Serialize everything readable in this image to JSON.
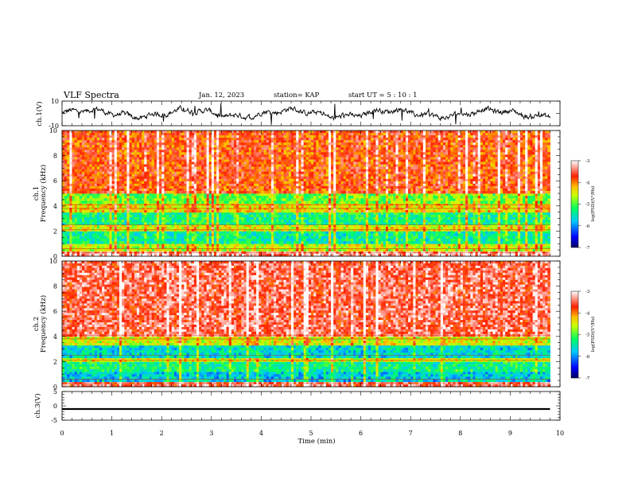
{
  "header": {
    "title": "VLF Spectra",
    "date": "Jan. 12, 2023",
    "station": "station= KAP",
    "start": "start UT =  5 : 10 : 1"
  },
  "chart_data": [
    {
      "type": "line",
      "panel": "ch1-waveform",
      "ylabel": "ch.1(V)",
      "ylim": [
        -10,
        10
      ],
      "yticks": [
        "10",
        "-10"
      ],
      "xlim": [
        0,
        10
      ],
      "description_values": {
        "x_range_min": [
          0,
          9.8
        ],
        "y_typical": [
          -3,
          3
        ]
      }
    },
    {
      "type": "heatmap",
      "panel": "ch1-spectrogram",
      "ylabel_line1": "ch.1",
      "ylabel_line2": "Frequency (kHz)",
      "ylim": [
        0,
        10
      ],
      "yticks": [
        "0",
        "2",
        "4",
        "6",
        "8",
        "10"
      ],
      "xlim": [
        0,
        9.8
      ],
      "colorbar": {
        "label": "log(PSD)(V²/Hz)",
        "range": [
          -7,
          -3
        ],
        "ticks": [
          "-3",
          "-4",
          "-5",
          "-6",
          "-7"
        ]
      },
      "bands": [
        {
          "f": [
            0,
            0.4
          ],
          "level": -3.4
        },
        {
          "f": [
            0.4,
            1.0
          ],
          "level": -4.6
        },
        {
          "f": [
            1.0,
            2.0
          ],
          "level": -5.4
        },
        {
          "f": [
            2.0,
            2.5
          ],
          "level": -4.5
        },
        {
          "f": [
            2.5,
            3.5
          ],
          "level": -5.3
        },
        {
          "f": [
            3.5,
            4.2
          ],
          "level": -4.4
        },
        {
          "f": [
            4.2,
            5.0
          ],
          "level": -4.9
        },
        {
          "f": [
            5.0,
            10.0
          ],
          "level": -3.8
        }
      ]
    },
    {
      "type": "heatmap",
      "panel": "ch2-spectrogram",
      "ylabel_line1": "ch.2",
      "ylabel_line2": "Frequency (kHz)",
      "ylim": [
        0,
        10
      ],
      "yticks": [
        "0",
        "2",
        "4",
        "6",
        "8",
        "10"
      ],
      "xlim": [
        0,
        9.8
      ],
      "colorbar": {
        "label": "log(PSD)(V²/Hz)",
        "range": [
          -7,
          -3
        ],
        "ticks": [
          "-3",
          "-4",
          "-5",
          "-6",
          "-7"
        ]
      },
      "bands": [
        {
          "f": [
            0,
            0.4
          ],
          "level": -3.5
        },
        {
          "f": [
            0.4,
            1.2
          ],
          "level": -5.7
        },
        {
          "f": [
            1.2,
            2.0
          ],
          "level": -5.3
        },
        {
          "f": [
            2.0,
            2.3
          ],
          "level": -4.5
        },
        {
          "f": [
            2.3,
            3.3
          ],
          "level": -5.6
        },
        {
          "f": [
            3.3,
            4.0
          ],
          "level": -4.5
        },
        {
          "f": [
            4.0,
            10.0
          ],
          "level": -3.5
        }
      ]
    },
    {
      "type": "line",
      "panel": "ch3-waveform",
      "ylabel": "ch.3(V)",
      "ylim": [
        -5,
        5
      ],
      "yticks": [
        "5",
        "0",
        "-5"
      ],
      "xlim": [
        0,
        10
      ],
      "xlabel": "Time (min)",
      "xticks": [
        "0",
        "1",
        "2",
        "3",
        "4",
        "5",
        "6",
        "7",
        "8",
        "9",
        "10"
      ],
      "y_typical": [
        -1.4,
        -0.8
      ]
    }
  ],
  "colors": {
    "scale": [
      "#000080",
      "#0000ff",
      "#00c8ff",
      "#00ff80",
      "#66ff33",
      "#d8ff00",
      "#ffd000",
      "#ff4000",
      "#ff0000",
      "#ffffff"
    ]
  }
}
